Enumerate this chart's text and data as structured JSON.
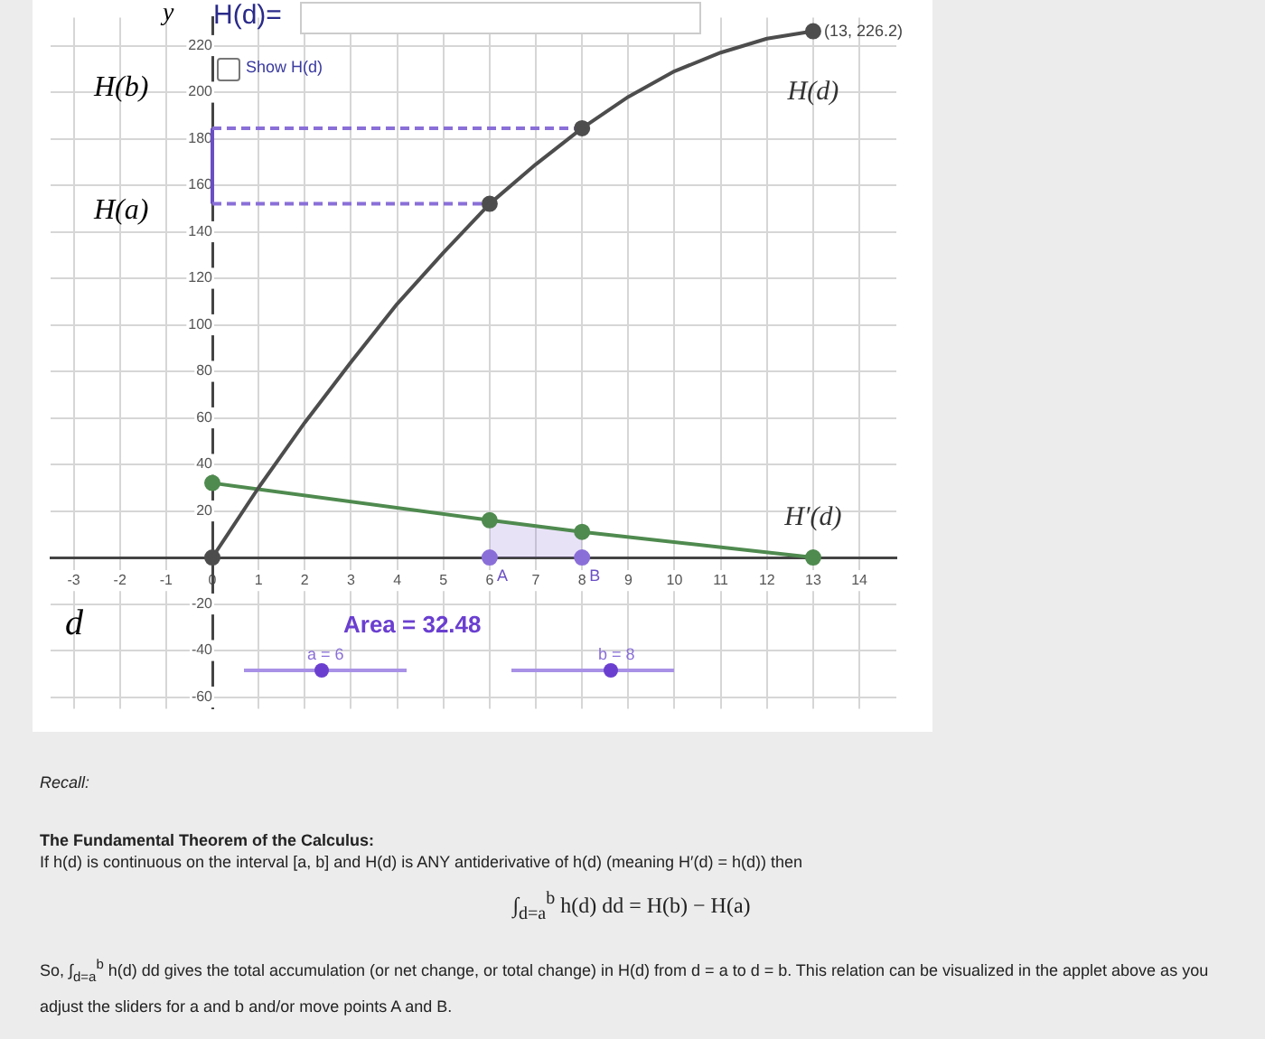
{
  "chart_data": {
    "type": "line",
    "xlabel": "d",
    "ylabel": "y",
    "xlim": [
      -3.5,
      14.8
    ],
    "ylim": [
      -65,
      232
    ],
    "xticks": [
      -3,
      -2,
      -1,
      0,
      1,
      2,
      3,
      4,
      5,
      6,
      7,
      8,
      9,
      10,
      11,
      12,
      13,
      14
    ],
    "yticks": [
      -60,
      -40,
      -20,
      20,
      40,
      60,
      80,
      100,
      120,
      140,
      160,
      180,
      200,
      220
    ],
    "grid": true,
    "series": [
      {
        "name": "H(d)",
        "type": "line",
        "color": "#4d4d4d",
        "marker": "none",
        "x": [
          0,
          1,
          2,
          3,
          4,
          5,
          6,
          7,
          8,
          9,
          10,
          11,
          12,
          13
        ],
        "values": [
          0,
          30,
          58,
          84,
          109,
          131,
          152,
          169,
          184.5,
          198,
          209,
          217,
          223,
          226.2
        ]
      },
      {
        "name": "H′(d)",
        "type": "line",
        "color": "#4f8a4f",
        "marker": "circle",
        "x": [
          0,
          6,
          8,
          13
        ],
        "values": [
          32,
          16,
          11,
          0
        ]
      },
      {
        "type": "scatter",
        "color": "#4d4d4d",
        "marker": "circle",
        "x": [
          0,
          6,
          8,
          13
        ],
        "values": [
          0,
          152,
          184.5,
          226.2
        ]
      },
      {
        "type": "area",
        "color": "#8a6fd8",
        "line_style": "dashed",
        "marker": "none",
        "x": [
          6,
          8
        ],
        "values": [
          16,
          11
        ]
      },
      {
        "type": "line",
        "color": "#8a6fd8",
        "line_style": "dashed",
        "marker": "none",
        "x": [
          0,
          6
        ],
        "values": [
          152,
          152
        ]
      },
      {
        "type": "line",
        "color": "#8a6fd8",
        "line_style": "dashed",
        "marker": "none",
        "x": [
          0,
          8
        ],
        "values": [
          184.5,
          184.5
        ]
      },
      {
        "type": "line",
        "color": "#6a4fc4",
        "line_style": "solid",
        "marker": "none",
        "x": [
          0,
          0
        ],
        "values": [
          152,
          184.5
        ]
      },
      {
        "type": "scatter",
        "color": "#8a6fd8",
        "marker": "circle",
        "x": [
          6,
          8
        ],
        "values": [
          0,
          0
        ]
      }
    ],
    "annotations": [
      "H(d)=",
      "Show H(d)",
      "Area = 32.48",
      "a = 6",
      "b = 8",
      "H(b)",
      "H(a)",
      "Recall:",
      "The Fundamental Theorem of the Calculus:",
      "If h(d) is continuous on the interval [a, b] and H(d) is ANY antiderivative of h(d) (meaning H′(d) = h(d)) then",
      "∫$_{d=a}$$^{b}$ h(d) dd = H(b) − H(a)",
      "So, ∫$_{d=a}$$^{b}$ h(d) dd gives the total accumulation (or net change, or total change) in H(d) from d = a to d = b. This relation can be visualized in the applet above as you adjust the sliders for a and b and/or move points A and B.",
      {
        "text": "(13, 226.2)",
        "x": 13,
        "y": 226.2
      },
      {
        "text": "A",
        "x": 6,
        "y": 0
      },
      {
        "text": "B",
        "x": 8,
        "y": 0
      }
    ]
  }
}
